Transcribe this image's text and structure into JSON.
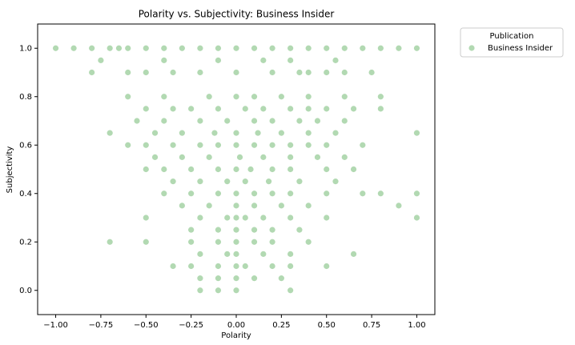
{
  "chart_data": {
    "type": "scatter",
    "title": "Polarity vs. Subjectivity: Business Insider",
    "x_label": "Polarity",
    "y_label": "Subjectivity",
    "legend_title": "Publication",
    "legend": "outside upper right",
    "xlim": [
      -1.1,
      1.1
    ],
    "ylim": [
      -0.1,
      1.1
    ],
    "xticks": [
      {
        "value": -1,
        "label": "−1.00"
      },
      {
        "value": -0.75,
        "label": "−0.75"
      },
      {
        "value": -0.5,
        "label": "−0.50"
      },
      {
        "value": -0.25,
        "label": "−0.25"
      },
      {
        "value": 0,
        "label": "0.00"
      },
      {
        "value": 0.25,
        "label": "0.25"
      },
      {
        "value": 0.5,
        "label": "0.50"
      },
      {
        "value": 0.75,
        "label": "0.75"
      },
      {
        "value": 1,
        "label": "1.00"
      }
    ],
    "yticks": [
      {
        "value": 0,
        "label": "0.0"
      },
      {
        "value": 0.2,
        "label": "0.2"
      },
      {
        "value": 0.4,
        "label": "0.4"
      },
      {
        "value": 0.6,
        "label": "0.6"
      },
      {
        "value": 0.8,
        "label": "0.8"
      },
      {
        "value": 1,
        "label": "1.0"
      }
    ],
    "series": [
      {
        "name": "Business Insider",
        "color": "green",
        "alpha": 0.3,
        "x": [
          -1,
          -0.9,
          -0.8,
          -0.7,
          -0.65,
          -0.6,
          -0.5,
          -0.4,
          -0.3,
          -0.2,
          -0.1,
          0,
          0.1,
          0.2,
          0.3,
          0.4,
          0.5,
          0.6,
          0.7,
          0.8,
          0.9,
          1,
          -0.8,
          -0.6,
          -0.5,
          -0.35,
          -0.2,
          0,
          0.2,
          0.35,
          0.4,
          0.5,
          0.6,
          0.75,
          -0.75,
          -0.4,
          -0.1,
          0.15,
          0.3,
          0.55,
          -0.6,
          -0.4,
          -0.15,
          0,
          0.1,
          0.25,
          0.4,
          0.6,
          0.8,
          -0.5,
          -0.35,
          -0.25,
          -0.1,
          0.05,
          0.15,
          0.3,
          0.4,
          0.5,
          0.65,
          0.8,
          -0.55,
          -0.4,
          -0.2,
          -0.05,
          0.1,
          0.2,
          0.35,
          0.45,
          0.6,
          -0.7,
          -0.45,
          -0.3,
          -0.12,
          0,
          0.12,
          0.25,
          0.4,
          0.55,
          1,
          -0.6,
          -0.5,
          -0.35,
          -0.2,
          -0.1,
          0,
          0.1,
          0.2,
          0.3,
          0.4,
          0.5,
          0.7,
          -0.45,
          -0.3,
          -0.15,
          0.02,
          0.15,
          0.3,
          0.45,
          0.6,
          -0.5,
          -0.4,
          -0.25,
          -0.1,
          0,
          0.08,
          0.2,
          0.3,
          0.5,
          0.65,
          -0.35,
          -0.2,
          -0.05,
          0.05,
          0.18,
          0.35,
          0.55,
          -0.4,
          -0.25,
          -0.1,
          0,
          0.1,
          0.2,
          0.3,
          0.5,
          0.7,
          0.8,
          1,
          -0.3,
          -0.15,
          0,
          0.1,
          0.25,
          0.4,
          0.9,
          -0.5,
          -0.2,
          -0.05,
          0,
          0.05,
          0.15,
          0.3,
          0.5,
          1,
          -0.25,
          -0.1,
          0,
          0.1,
          0.2,
          0.35,
          -0.7,
          -0.5,
          -0.25,
          -0.1,
          0,
          0.1,
          0.2,
          0.4,
          -0.2,
          -0.05,
          0,
          0.15,
          0.3,
          0.65,
          -0.35,
          -0.25,
          -0.1,
          0,
          0.05,
          0.2,
          0.3,
          0.5,
          -0.2,
          -0.1,
          0,
          0.1,
          0.25,
          -0.2,
          -0.1,
          0,
          0.3
        ],
        "y": [
          1,
          1,
          1,
          1,
          1,
          1,
          1,
          1,
          1,
          1,
          1,
          1,
          1,
          1,
          1,
          1,
          1,
          1,
          1,
          1,
          1,
          1,
          0.9,
          0.9,
          0.9,
          0.9,
          0.9,
          0.9,
          0.9,
          0.9,
          0.9,
          0.9,
          0.9,
          0.9,
          0.95,
          0.95,
          0.95,
          0.95,
          0.95,
          0.95,
          0.8,
          0.8,
          0.8,
          0.8,
          0.8,
          0.8,
          0.8,
          0.8,
          0.8,
          0.75,
          0.75,
          0.75,
          0.75,
          0.75,
          0.75,
          0.75,
          0.75,
          0.75,
          0.75,
          0.75,
          0.7,
          0.7,
          0.7,
          0.7,
          0.7,
          0.7,
          0.7,
          0.7,
          0.7,
          0.65,
          0.65,
          0.65,
          0.65,
          0.65,
          0.65,
          0.65,
          0.65,
          0.65,
          0.65,
          0.6,
          0.6,
          0.6,
          0.6,
          0.6,
          0.6,
          0.6,
          0.6,
          0.6,
          0.6,
          0.6,
          0.6,
          0.55,
          0.55,
          0.55,
          0.55,
          0.55,
          0.55,
          0.55,
          0.55,
          0.5,
          0.5,
          0.5,
          0.5,
          0.5,
          0.5,
          0.5,
          0.5,
          0.5,
          0.5,
          0.45,
          0.45,
          0.45,
          0.45,
          0.45,
          0.45,
          0.45,
          0.4,
          0.4,
          0.4,
          0.4,
          0.4,
          0.4,
          0.4,
          0.4,
          0.4,
          0.4,
          0.4,
          0.35,
          0.35,
          0.35,
          0.35,
          0.35,
          0.35,
          0.35,
          0.3,
          0.3,
          0.3,
          0.3,
          0.3,
          0.3,
          0.3,
          0.3,
          0.3,
          0.25,
          0.25,
          0.25,
          0.25,
          0.25,
          0.25,
          0.2,
          0.2,
          0.2,
          0.2,
          0.2,
          0.2,
          0.2,
          0.2,
          0.15,
          0.15,
          0.15,
          0.15,
          0.15,
          0.15,
          0.1,
          0.1,
          0.1,
          0.1,
          0.1,
          0.1,
          0.1,
          0.1,
          0.05,
          0.05,
          0.05,
          0.05,
          0.05,
          0,
          0,
          0,
          0
        ]
      }
    ]
  }
}
